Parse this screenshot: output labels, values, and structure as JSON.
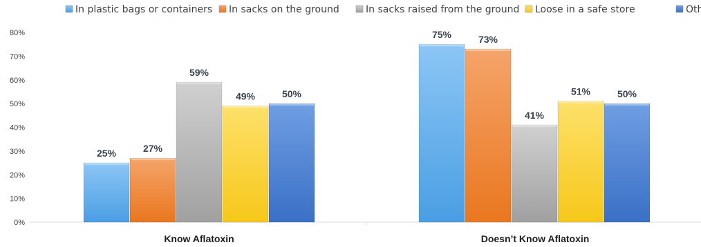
{
  "chart_data": {
    "type": "bar",
    "categories": [
      "Know Aflatoxin",
      "Doesn’t Know Aflatoxin"
    ],
    "series": [
      {
        "name": "In plastic bags or containers",
        "values": [
          25,
          75
        ],
        "labels": [
          "25%",
          "75%"
        ],
        "color": "#6fb4ee"
      },
      {
        "name": "In sacks on the ground",
        "values": [
          27,
          73
        ],
        "labels": [
          "27%",
          "73%"
        ],
        "color": "#f0883a"
      },
      {
        "name": "In sacks raised from the ground",
        "values": [
          59,
          41
        ],
        "labels": [
          "59%",
          "41%"
        ],
        "color": "#b8b8b8"
      },
      {
        "name": "Loose in a safe store",
        "values": [
          49,
          51
        ],
        "labels": [
          "49%",
          "51%"
        ],
        "color": "#fcd22e"
      },
      {
        "name": "Other",
        "values": [
          50,
          50
        ],
        "labels": [
          "50%",
          "50%"
        ],
        "color": "#4f86d6"
      }
    ],
    "yticks": [
      "0%",
      "10%",
      "20%",
      "30%",
      "40%",
      "50%",
      "60%",
      "70%",
      "80%"
    ],
    "ylim": [
      0,
      80
    ],
    "grid": false,
    "legend_position": "top"
  }
}
